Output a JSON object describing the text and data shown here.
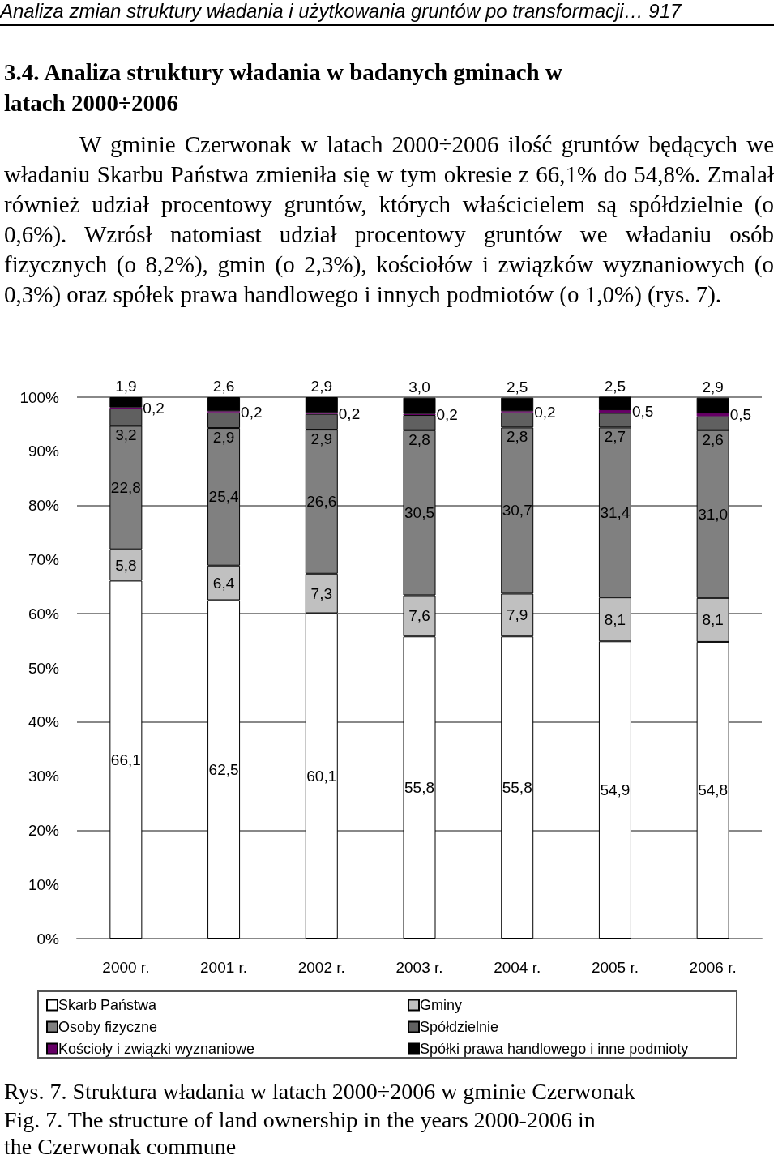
{
  "chart_data": {
    "type": "bar",
    "stacked": true,
    "title": "Rys. 7. Struktura władania w latach 2000÷2006 w gminie Czerwonak",
    "subtitle": "Fig. 7. The structure of land ownership in the years 2000-2006 in the Czerwonak commune",
    "annotations": [
      "Analiza zmian struktury władania i użytkowania gruntów po transformacji… 917",
      "3.4. Analiza struktury władania w badanych gminach w latach 2000÷2006",
      "W gminie Czerwonak w latach 2000÷2006 ilość gruntów będących we władaniu Skarbu Państwa zmieniła się w tym okresie z 66,1% do 54,8%. Zmalał również udział procentowy gruntów, których właścicielem są spółdzielnie (o 0,6%). Wzrósł natomiast udział procentowy gruntów we władaniu osób fizycznych (o 8,2%), gmin (o 2,3%), kościołów i związków wyznaniowych (o 0,3%) oraz spółek prawa handlowego i innych podmiotów (o 1,0%) (rys. 7)."
    ],
    "categories": [
      "2000 r.",
      "2001 r.",
      "2002 r.",
      "2003 r.",
      "2004 r.",
      "2005 r.",
      "2006 r."
    ],
    "series": [
      {
        "name": "Skarb Państwa",
        "color": "#ffffff",
        "values": [
          66.1,
          62.5,
          60.1,
          55.8,
          55.8,
          54.9,
          54.8
        ],
        "value_labels": [
          "66,1",
          "62,5",
          "60,1",
          "55,8",
          "55,8",
          "54,9",
          "54,8"
        ]
      },
      {
        "name": "Gminy",
        "color": "#c0c0c0",
        "values": [
          5.8,
          6.4,
          7.3,
          7.6,
          7.9,
          8.1,
          8.1
        ],
        "value_labels": [
          "5,8",
          "6,4",
          "7,3",
          "7,6",
          "7,9",
          "8,1",
          "8,1"
        ]
      },
      {
        "name": "Osoby fizyczne",
        "color": "#808080",
        "values": [
          22.8,
          25.4,
          26.6,
          30.5,
          30.7,
          31.4,
          31.0
        ],
        "value_labels": [
          "22,8",
          "25,4",
          "26,6",
          "30,5",
          "30,7",
          "31,4",
          "31,0"
        ]
      },
      {
        "name": "Spółdzielnie",
        "color": "#606060",
        "values": [
          3.2,
          2.9,
          2.9,
          2.8,
          2.8,
          2.7,
          2.6
        ],
        "value_labels": [
          "3,2",
          "2,9",
          "2,9",
          "2,8",
          "2,8",
          "2,7",
          "2,6"
        ]
      },
      {
        "name": "Kościoły i związki wyznaniowe",
        "color": "#660066",
        "values": [
          0.2,
          0.2,
          0.2,
          0.2,
          0.2,
          0.5,
          0.5
        ],
        "value_labels": [
          "0,2",
          "0,2",
          "0,2",
          "0,2",
          "0,2",
          "0,5",
          "0,5"
        ]
      },
      {
        "name": "Spółki prawa handlowego i inne podmioty",
        "color": "#000000",
        "values": [
          1.9,
          2.6,
          2.9,
          3.0,
          2.5,
          2.5,
          2.9
        ],
        "value_labels": [
          "1,9",
          "2,6",
          "2,9",
          "3,0",
          "2,5",
          "2,5",
          "2,9"
        ]
      }
    ],
    "ylim": [
      0,
      100
    ],
    "yticks": [
      {
        "value": 0,
        "label": "0%"
      },
      {
        "value": 10,
        "label": "10%"
      },
      {
        "value": 20,
        "label": "20%"
      },
      {
        "value": 30,
        "label": "30%"
      },
      {
        "value": 40,
        "label": "40%"
      },
      {
        "value": 50,
        "label": "50%"
      },
      {
        "value": 60,
        "label": "60%"
      },
      {
        "value": 70,
        "label": "70%"
      },
      {
        "value": 80,
        "label": "80%"
      },
      {
        "value": 90,
        "label": "90%"
      },
      {
        "value": 100,
        "label": "100%"
      }
    ],
    "grid": "y",
    "legend": "bottom"
  }
}
